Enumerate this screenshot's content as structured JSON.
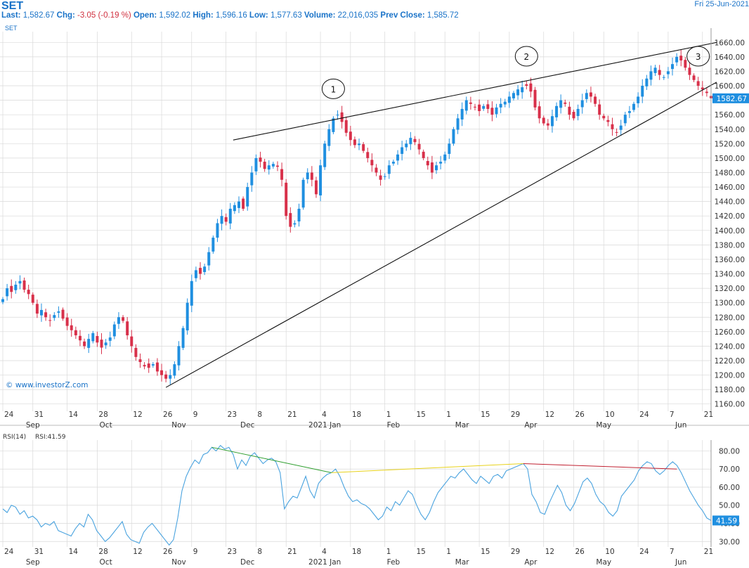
{
  "header": {
    "symbol": "SET",
    "date": "Fri 25-Jun-2021",
    "last_label": "Last:",
    "last": "1,582.67",
    "chg_label": "Chg:",
    "chg": "-3.05 (-0.19 %)",
    "open_label": "Open:",
    "open": "1,592.02",
    "high_label": "High:",
    "high": "1,596.16",
    "low_label": "Low:",
    "low": "1,577.63",
    "volume_label": "Volume:",
    "volume": "22,016,035",
    "prev_label": "Prev Close:",
    "prev": "1,585.72",
    "subtitle": "SET"
  },
  "watermark": "© www.investorZ.com",
  "colors": {
    "up": "#1f8fe0",
    "down": "#d8304a",
    "grid": "#d9d9d9",
    "axis_text": "#333333",
    "rsi": "#4aa3df"
  },
  "x_axis": {
    "day_ticks": [
      "24",
      "31",
      "14",
      "28",
      "12",
      "26",
      "9",
      "23",
      "8",
      "21",
      "4",
      "18",
      "1",
      "15",
      "1",
      "15",
      "29",
      "12",
      "26",
      "10",
      "24",
      "7",
      "21"
    ],
    "month_labels": [
      "Sep",
      "Oct",
      "Nov",
      "Dec",
      "2021 Jan",
      "Feb",
      "Mar",
      "Apr",
      "May",
      "Jun"
    ]
  },
  "chart_data": [
    {
      "type": "candlestick",
      "title": "SET",
      "ylim": [
        1150,
        1670
      ],
      "y_ticks": [
        1160,
        1180,
        1200,
        1220,
        1240,
        1260,
        1280,
        1300,
        1320,
        1340,
        1360,
        1380,
        1400,
        1420,
        1440,
        1460,
        1480,
        1500,
        1520,
        1540,
        1560,
        1580,
        1600,
        1620,
        1640,
        1660
      ],
      "last_value": "1582.67",
      "annotations": [
        "1",
        "2",
        "3"
      ],
      "close_series": [
        1305,
        1320,
        1315,
        1325,
        1330,
        1318,
        1312,
        1300,
        1285,
        1290,
        1280,
        1275,
        1283,
        1288,
        1278,
        1268,
        1262,
        1255,
        1248,
        1240,
        1250,
        1258,
        1245,
        1238,
        1245,
        1252,
        1270,
        1280,
        1275,
        1255,
        1240,
        1225,
        1218,
        1212,
        1210,
        1215,
        1205,
        1200,
        1195,
        1200,
        1215,
        1240,
        1265,
        1300,
        1330,
        1345,
        1340,
        1350,
        1370,
        1390,
        1410,
        1420,
        1412,
        1430,
        1435,
        1440,
        1430,
        1460,
        1480,
        1500,
        1495,
        1485,
        1490,
        1492,
        1488,
        1470,
        1420,
        1405,
        1410,
        1430,
        1470,
        1480,
        1470,
        1450,
        1490,
        1520,
        1540,
        1555,
        1560,
        1550,
        1535,
        1525,
        1518,
        1520,
        1510,
        1500,
        1490,
        1480,
        1470,
        1475,
        1490,
        1495,
        1505,
        1515,
        1520,
        1528,
        1522,
        1512,
        1500,
        1490,
        1480,
        1490,
        1495,
        1505,
        1520,
        1540,
        1555,
        1568,
        1580,
        1575,
        1570,
        1565,
        1572,
        1568,
        1560,
        1570,
        1575,
        1578,
        1585,
        1590,
        1595,
        1598,
        1600,
        1592,
        1570,
        1555,
        1548,
        1545,
        1558,
        1572,
        1580,
        1575,
        1560,
        1555,
        1568,
        1580,
        1590,
        1585,
        1575,
        1560,
        1555,
        1550,
        1540,
        1535,
        1545,
        1560,
        1565,
        1575,
        1585,
        1600,
        1610,
        1620,
        1625,
        1615,
        1612,
        1620,
        1630,
        1640,
        1635,
        1625,
        1615,
        1608,
        1600,
        1595,
        1590,
        1582.67
      ],
      "annotation_day_index": [
        77,
        122,
        162
      ]
    },
    {
      "type": "line",
      "title": "RSI(14)",
      "series": [
        {
          "name": "RSI:41.59",
          "values": [
            48,
            46,
            50,
            49,
            45,
            47,
            43,
            44,
            42,
            38,
            40,
            39,
            41,
            36,
            35,
            34,
            33,
            37,
            40,
            38,
            45,
            42,
            36,
            33,
            30,
            32,
            35,
            38,
            41,
            34,
            31,
            30,
            29,
            35,
            38,
            40,
            37,
            34,
            31,
            28,
            31,
            43,
            58,
            66,
            71,
            75,
            73,
            78,
            79,
            82,
            80,
            83,
            81,
            82,
            78,
            70,
            75,
            72,
            77,
            79,
            76,
            73,
            75,
            76,
            74,
            68,
            48,
            52,
            55,
            54,
            60,
            66,
            58,
            54,
            62,
            65,
            67,
            68,
            70,
            66,
            60,
            55,
            52,
            53,
            51,
            50,
            48,
            45,
            42,
            44,
            49,
            47,
            52,
            50,
            54,
            58,
            56,
            50,
            45,
            42,
            46,
            52,
            57,
            60,
            63,
            66,
            65,
            68,
            70,
            67,
            64,
            62,
            66,
            64,
            62,
            66,
            67,
            65,
            69,
            70,
            71,
            72,
            73,
            70,
            56,
            52,
            46,
            45,
            51,
            56,
            61,
            57,
            50,
            47,
            51,
            57,
            63,
            65,
            62,
            56,
            52,
            50,
            46,
            44,
            47,
            55,
            58,
            61,
            64,
            69,
            72,
            74,
            73,
            69,
            67,
            69,
            72,
            74,
            72,
            68,
            63,
            58,
            54,
            50,
            47,
            43,
            41.59
          ]
        }
      ],
      "ylim": [
        27,
        86
      ],
      "y_ticks": [
        30,
        40,
        50,
        60,
        70,
        80
      ],
      "last_value": "41.59"
    }
  ]
}
